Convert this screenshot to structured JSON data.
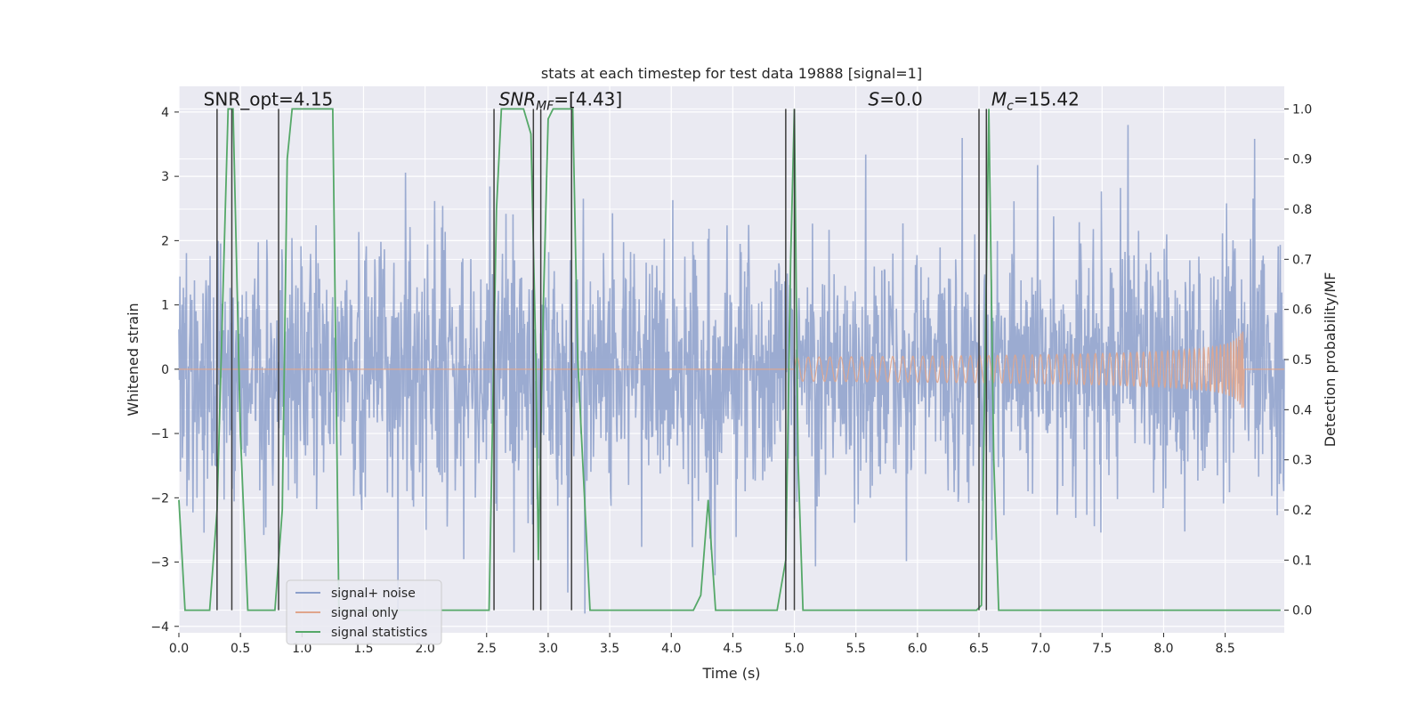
{
  "chart_data": {
    "type": "line",
    "title": "stats at each timestep for test data 19888 [signal=1]",
    "xlabel": "Time (s)",
    "ylabel_left": "Whitened strain",
    "ylabel_right": "Detection probability/MF",
    "xlim": [
      0.0,
      8.98
    ],
    "ylim_left": [
      -4.1,
      4.4
    ],
    "ylim_right": [
      -0.045,
      1.045
    ],
    "x_ticks": [
      0.0,
      0.5,
      1.0,
      1.5,
      2.0,
      2.5,
      3.0,
      3.5,
      4.0,
      4.5,
      5.0,
      5.5,
      6.0,
      6.5,
      7.0,
      7.5,
      8.0,
      8.5
    ],
    "x_tick_labels": [
      "0.0",
      "0.5",
      "1.0",
      "1.5",
      "2.0",
      "2.5",
      "3.0",
      "3.5",
      "4.0",
      "4.5",
      "5.0",
      "5.5",
      "6.0",
      "6.5",
      "7.0",
      "7.5",
      "8.0",
      "8.5"
    ],
    "y_left_ticks": [
      4,
      3,
      2,
      1,
      0,
      -1,
      -2,
      -3,
      -4
    ],
    "y_left_tick_labels": [
      "4",
      "3",
      "2",
      "1",
      "0",
      "−1",
      "−2",
      "−3",
      "−4"
    ],
    "y_right_ticks": [
      1.0,
      0.9,
      0.8,
      0.7,
      0.6,
      0.5,
      0.4,
      0.3,
      0.2,
      0.1,
      0.0
    ],
    "y_right_tick_labels": [
      "1.0",
      "0.9",
      "0.8",
      "0.7",
      "0.6",
      "0.5",
      "0.4",
      "0.3",
      "0.2",
      "0.1",
      "0.0"
    ],
    "grid": true,
    "legend_position": "lower-left",
    "annotations": [
      {
        "text": "SNR_opt=4.15",
        "x": 0.2,
        "y": 4.1
      },
      {
        "text": "SNR_MF=[4.43]",
        "x": 2.6,
        "y": 4.1
      },
      {
        "text": "S=0.0",
        "x": 5.6,
        "y": 4.1
      },
      {
        "text": "M_c=15.42",
        "x": 6.6,
        "y": 4.1
      }
    ],
    "vertical_lines_x": [
      0.31,
      0.43,
      0.81,
      2.56,
      2.88,
      2.94,
      3.19,
      4.93,
      5.0,
      6.5,
      6.56
    ],
    "series": [
      {
        "name": "signal+ noise",
        "axis": "left",
        "color": "#8da0cb",
        "note": "dense noise trace",
        "noise_sigma": 0.95,
        "noise_clip": 3.8,
        "noise_points": 2200
      },
      {
        "name": "signal only",
        "axis": "left",
        "color": "#e0a58c",
        "note": "chirp growing towards merger",
        "chirp_start": 5.0,
        "chirp_end": 8.65,
        "chirp_peak_amplitude": 0.7
      },
      {
        "name": "signal statistics",
        "axis": "right",
        "color": "#55a868",
        "x": [
          0.0,
          0.05,
          0.25,
          0.31,
          0.36,
          0.4,
          0.44,
          0.5,
          0.56,
          0.78,
          0.84,
          0.88,
          0.92,
          1.25,
          1.3,
          2.52,
          2.58,
          2.62,
          2.8,
          2.86,
          2.9,
          2.92,
          2.96,
          3.0,
          3.04,
          3.2,
          3.24,
          3.34,
          4.18,
          4.24,
          4.3,
          4.36,
          4.86,
          4.93,
          4.97,
          5.0,
          5.03,
          5.07,
          6.48,
          6.52,
          6.55,
          6.58,
          6.62,
          6.66,
          8.95
        ],
        "y": [
          0.22,
          0.0,
          0.0,
          0.2,
          0.65,
          1.0,
          1.0,
          0.35,
          0.0,
          0.0,
          0.2,
          0.9,
          1.0,
          1.0,
          0.0,
          0.0,
          0.8,
          1.0,
          1.0,
          0.95,
          0.5,
          0.1,
          0.6,
          0.98,
          1.0,
          1.0,
          0.5,
          0.0,
          0.0,
          0.03,
          0.22,
          0.0,
          0.0,
          0.1,
          0.7,
          1.0,
          0.3,
          0.0,
          0.0,
          0.01,
          0.5,
          1.0,
          0.3,
          0.0,
          0.0
        ]
      }
    ]
  }
}
